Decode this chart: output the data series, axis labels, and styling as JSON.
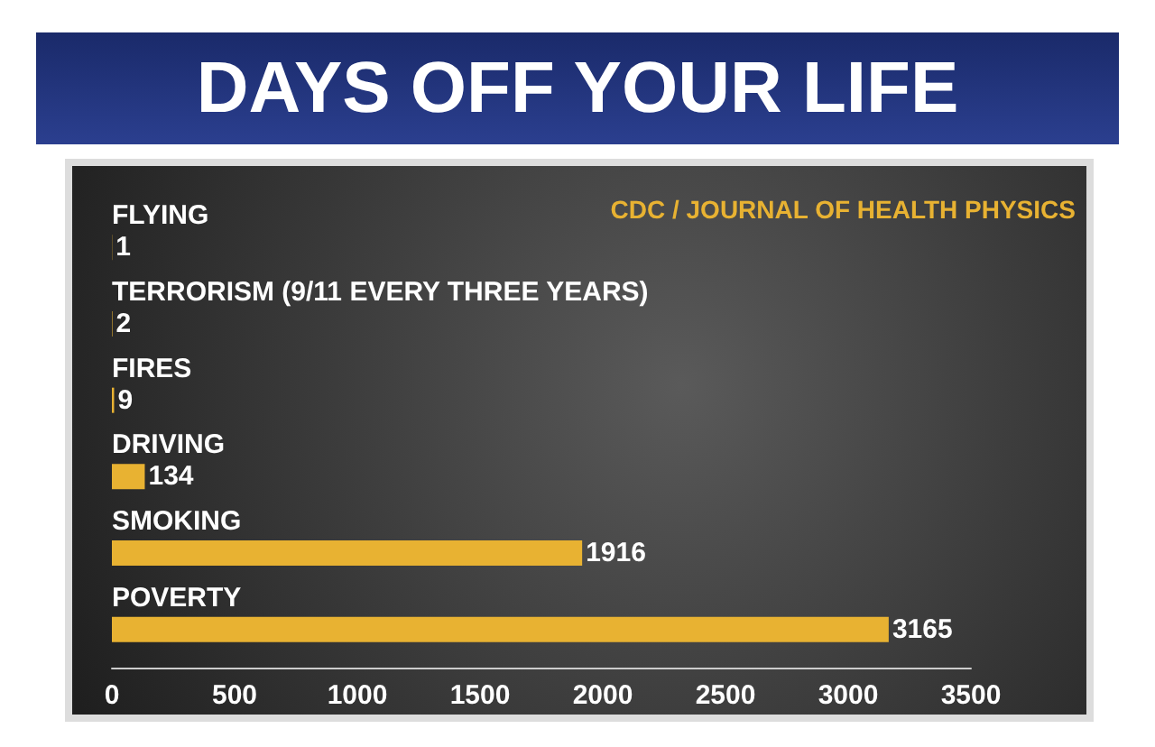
{
  "chart_data": {
    "type": "bar",
    "orientation": "horizontal",
    "title": "DAYS OFF YOUR LIFE",
    "categories": [
      "FLYING",
      "TERRORISM (9/11 EVERY THREE YEARS)",
      "FIRES",
      "DRIVING",
      "SMOKING",
      "POVERTY"
    ],
    "values": [
      1,
      2,
      9,
      134,
      1916,
      3165
    ],
    "color": "#e8b232",
    "xlim": [
      0,
      3500
    ],
    "xticks": [
      0,
      500,
      1000,
      1500,
      2000,
      2500,
      3000,
      3500
    ],
    "data_labels": true,
    "annotations": [
      "CDC / JOURNAL OF HEALTH PHYSICS"
    ]
  }
}
